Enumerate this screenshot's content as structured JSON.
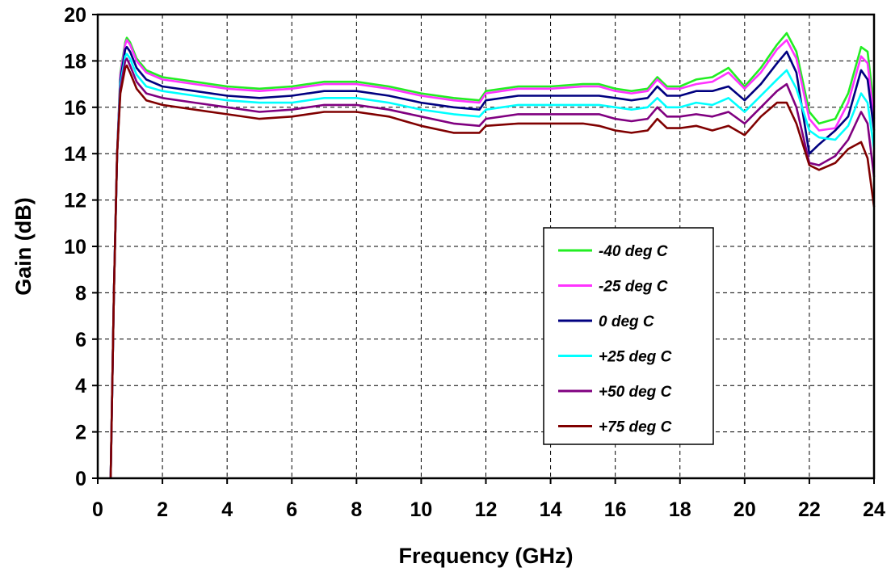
{
  "chart_data": {
    "type": "line",
    "xlabel": "Frequency (GHz)",
    "ylabel": "Gain (dB)",
    "xlim": [
      0,
      24
    ],
    "ylim": [
      0,
      20
    ],
    "xticks": [
      0,
      2,
      4,
      6,
      8,
      10,
      12,
      14,
      16,
      18,
      20,
      22,
      24
    ],
    "yticks": [
      0,
      2,
      4,
      6,
      8,
      10,
      12,
      14,
      16,
      18,
      20
    ],
    "grid": true,
    "legend_position": "center-right",
    "series": [
      {
        "name": "-40 deg C",
        "color": "#22ee22",
        "points": [
          [
            0.4,
            0
          ],
          [
            0.5,
            8
          ],
          [
            0.6,
            14
          ],
          [
            0.7,
            17.5
          ],
          [
            0.85,
            18.8
          ],
          [
            0.9,
            19
          ],
          [
            1.0,
            18.8
          ],
          [
            1.2,
            18.1
          ],
          [
            1.5,
            17.6
          ],
          [
            2,
            17.3
          ],
          [
            3,
            17.1
          ],
          [
            4,
            16.9
          ],
          [
            5,
            16.8
          ],
          [
            6,
            16.9
          ],
          [
            7,
            17.1
          ],
          [
            8,
            17.1
          ],
          [
            9,
            16.9
          ],
          [
            10,
            16.6
          ],
          [
            11,
            16.4
          ],
          [
            11.8,
            16.3
          ],
          [
            12,
            16.7
          ],
          [
            13,
            16.9
          ],
          [
            14,
            16.9
          ],
          [
            15,
            17
          ],
          [
            15.5,
            17
          ],
          [
            16,
            16.8
          ],
          [
            16.5,
            16.7
          ],
          [
            17,
            16.8
          ],
          [
            17.3,
            17.3
          ],
          [
            17.6,
            16.9
          ],
          [
            18,
            16.9
          ],
          [
            18.5,
            17.2
          ],
          [
            19,
            17.3
          ],
          [
            19.5,
            17.7
          ],
          [
            20,
            16.9
          ],
          [
            20.5,
            17.7
          ],
          [
            21,
            18.7
          ],
          [
            21.3,
            19.2
          ],
          [
            21.6,
            18.4
          ],
          [
            22,
            15.8
          ],
          [
            22.3,
            15.3
          ],
          [
            22.8,
            15.5
          ],
          [
            23.2,
            16.6
          ],
          [
            23.6,
            18.6
          ],
          [
            23.8,
            18.4
          ],
          [
            24,
            16
          ]
        ]
      },
      {
        "name": "-25 deg C",
        "color": "#ff33ff",
        "points": [
          [
            0.4,
            0
          ],
          [
            0.5,
            8
          ],
          [
            0.6,
            14
          ],
          [
            0.7,
            17.4
          ],
          [
            0.85,
            18.7
          ],
          [
            0.9,
            18.9
          ],
          [
            1.0,
            18.7
          ],
          [
            1.2,
            18
          ],
          [
            1.5,
            17.5
          ],
          [
            2,
            17.2
          ],
          [
            3,
            17
          ],
          [
            4,
            16.8
          ],
          [
            5,
            16.7
          ],
          [
            6,
            16.8
          ],
          [
            7,
            17
          ],
          [
            8,
            17
          ],
          [
            9,
            16.8
          ],
          [
            10,
            16.5
          ],
          [
            11,
            16.3
          ],
          [
            11.8,
            16.2
          ],
          [
            12,
            16.6
          ],
          [
            13,
            16.8
          ],
          [
            14,
            16.8
          ],
          [
            15,
            16.9
          ],
          [
            15.5,
            16.9
          ],
          [
            16,
            16.7
          ],
          [
            16.5,
            16.6
          ],
          [
            17,
            16.7
          ],
          [
            17.3,
            17.2
          ],
          [
            17.6,
            16.8
          ],
          [
            18,
            16.8
          ],
          [
            18.5,
            17
          ],
          [
            19,
            17.1
          ],
          [
            19.5,
            17.5
          ],
          [
            20,
            16.8
          ],
          [
            20.5,
            17.5
          ],
          [
            21,
            18.5
          ],
          [
            21.3,
            18.9
          ],
          [
            21.6,
            18.1
          ],
          [
            22,
            15.5
          ],
          [
            22.3,
            15
          ],
          [
            22.8,
            15.1
          ],
          [
            23.2,
            16.2
          ],
          [
            23.6,
            18.2
          ],
          [
            23.8,
            17.9
          ],
          [
            24,
            15.5
          ]
        ]
      },
      {
        "name": "0 deg C",
        "color": "#000080",
        "points": [
          [
            0.4,
            0
          ],
          [
            0.5,
            8
          ],
          [
            0.6,
            14
          ],
          [
            0.7,
            17.2
          ],
          [
            0.85,
            18.5
          ],
          [
            0.9,
            18.6
          ],
          [
            1.0,
            18.4
          ],
          [
            1.2,
            17.7
          ],
          [
            1.5,
            17.2
          ],
          [
            2,
            16.9
          ],
          [
            3,
            16.7
          ],
          [
            4,
            16.5
          ],
          [
            5,
            16.4
          ],
          [
            6,
            16.5
          ],
          [
            7,
            16.7
          ],
          [
            8,
            16.7
          ],
          [
            9,
            16.5
          ],
          [
            10,
            16.2
          ],
          [
            11,
            16
          ],
          [
            11.8,
            15.9
          ],
          [
            12,
            16.3
          ],
          [
            13,
            16.5
          ],
          [
            14,
            16.5
          ],
          [
            15,
            16.5
          ],
          [
            15.5,
            16.5
          ],
          [
            16,
            16.4
          ],
          [
            16.5,
            16.3
          ],
          [
            17,
            16.4
          ],
          [
            17.3,
            16.9
          ],
          [
            17.6,
            16.5
          ],
          [
            18,
            16.5
          ],
          [
            18.5,
            16.7
          ],
          [
            19,
            16.7
          ],
          [
            19.5,
            16.9
          ],
          [
            20,
            16.3
          ],
          [
            20.5,
            17
          ],
          [
            21,
            17.9
          ],
          [
            21.3,
            18.4
          ],
          [
            21.6,
            17.5
          ],
          [
            22,
            14
          ],
          [
            22.3,
            14.4
          ],
          [
            22.8,
            15
          ],
          [
            23.2,
            15.6
          ],
          [
            23.6,
            17.6
          ],
          [
            23.8,
            17.2
          ],
          [
            24,
            15
          ]
        ]
      },
      {
        "name": "+25 deg C",
        "color": "#00ffff",
        "points": [
          [
            0.4,
            0
          ],
          [
            0.5,
            8
          ],
          [
            0.6,
            14
          ],
          [
            0.7,
            17
          ],
          [
            0.85,
            18.2
          ],
          [
            0.9,
            18.3
          ],
          [
            1.0,
            18.1
          ],
          [
            1.2,
            17.4
          ],
          [
            1.5,
            16.9
          ],
          [
            2,
            16.7
          ],
          [
            3,
            16.5
          ],
          [
            4,
            16.3
          ],
          [
            5,
            16.2
          ],
          [
            6,
            16.2
          ],
          [
            7,
            16.4
          ],
          [
            8,
            16.4
          ],
          [
            9,
            16.2
          ],
          [
            10,
            15.9
          ],
          [
            11,
            15.7
          ],
          [
            11.8,
            15.6
          ],
          [
            12,
            15.9
          ],
          [
            13,
            16.1
          ],
          [
            14,
            16.1
          ],
          [
            15,
            16.1
          ],
          [
            15.5,
            16.1
          ],
          [
            16,
            16
          ],
          [
            16.5,
            15.9
          ],
          [
            17,
            16
          ],
          [
            17.3,
            16.4
          ],
          [
            17.6,
            16
          ],
          [
            18,
            16
          ],
          [
            18.5,
            16.2
          ],
          [
            19,
            16.1
          ],
          [
            19.5,
            16.4
          ],
          [
            20,
            15.8
          ],
          [
            20.5,
            16.5
          ],
          [
            21,
            17.2
          ],
          [
            21.3,
            17.6
          ],
          [
            21.6,
            16.8
          ],
          [
            22,
            15
          ],
          [
            22.3,
            14.7
          ],
          [
            22.8,
            14.6
          ],
          [
            23.2,
            15.2
          ],
          [
            23.6,
            16.6
          ],
          [
            23.8,
            16.2
          ],
          [
            24,
            14.2
          ]
        ]
      },
      {
        "name": "+50 deg C",
        "color": "#800080",
        "points": [
          [
            0.4,
            0
          ],
          [
            0.5,
            8
          ],
          [
            0.6,
            14
          ],
          [
            0.7,
            16.8
          ],
          [
            0.85,
            18
          ],
          [
            0.9,
            18.1
          ],
          [
            1.0,
            17.8
          ],
          [
            1.2,
            17.1
          ],
          [
            1.5,
            16.6
          ],
          [
            2,
            16.4
          ],
          [
            3,
            16.2
          ],
          [
            4,
            16
          ],
          [
            5,
            15.8
          ],
          [
            6,
            15.9
          ],
          [
            7,
            16.1
          ],
          [
            8,
            16.1
          ],
          [
            9,
            15.9
          ],
          [
            10,
            15.6
          ],
          [
            11,
            15.3
          ],
          [
            11.8,
            15.2
          ],
          [
            12,
            15.5
          ],
          [
            13,
            15.7
          ],
          [
            14,
            15.7
          ],
          [
            15,
            15.7
          ],
          [
            15.5,
            15.7
          ],
          [
            16,
            15.5
          ],
          [
            16.5,
            15.4
          ],
          [
            17,
            15.5
          ],
          [
            17.3,
            16
          ],
          [
            17.6,
            15.6
          ],
          [
            18,
            15.6
          ],
          [
            18.5,
            15.7
          ],
          [
            19,
            15.6
          ],
          [
            19.5,
            15.8
          ],
          [
            20,
            15.3
          ],
          [
            20.5,
            16
          ],
          [
            21,
            16.7
          ],
          [
            21.3,
            17
          ],
          [
            21.6,
            16
          ],
          [
            22,
            13.6
          ],
          [
            22.3,
            13.5
          ],
          [
            22.8,
            13.9
          ],
          [
            23.2,
            14.6
          ],
          [
            23.6,
            15.8
          ],
          [
            23.8,
            15.3
          ],
          [
            24,
            13
          ]
        ]
      },
      {
        "name": "+75 deg C",
        "color": "#800000",
        "points": [
          [
            0.4,
            0
          ],
          [
            0.5,
            8
          ],
          [
            0.6,
            14
          ],
          [
            0.7,
            16.6
          ],
          [
            0.85,
            17.7
          ],
          [
            0.9,
            17.8
          ],
          [
            1.0,
            17.5
          ],
          [
            1.2,
            16.8
          ],
          [
            1.5,
            16.3
          ],
          [
            2,
            16.1
          ],
          [
            3,
            15.9
          ],
          [
            4,
            15.7
          ],
          [
            5,
            15.5
          ],
          [
            6,
            15.6
          ],
          [
            7,
            15.8
          ],
          [
            8,
            15.8
          ],
          [
            9,
            15.6
          ],
          [
            10,
            15.2
          ],
          [
            11,
            14.9
          ],
          [
            11.8,
            14.9
          ],
          [
            12,
            15.2
          ],
          [
            13,
            15.3
          ],
          [
            14,
            15.3
          ],
          [
            15,
            15.3
          ],
          [
            15.5,
            15.2
          ],
          [
            16,
            15
          ],
          [
            16.5,
            14.9
          ],
          [
            17,
            15
          ],
          [
            17.3,
            15.5
          ],
          [
            17.6,
            15.1
          ],
          [
            18,
            15.1
          ],
          [
            18.5,
            15.2
          ],
          [
            19,
            15
          ],
          [
            19.5,
            15.2
          ],
          [
            20,
            14.8
          ],
          [
            20.5,
            15.6
          ],
          [
            21,
            16.2
          ],
          [
            21.3,
            16.2
          ],
          [
            21.6,
            15.3
          ],
          [
            22,
            13.5
          ],
          [
            22.3,
            13.3
          ],
          [
            22.8,
            13.6
          ],
          [
            23.2,
            14.2
          ],
          [
            23.6,
            14.5
          ],
          [
            23.8,
            13.8
          ],
          [
            24,
            11.7
          ]
        ]
      }
    ]
  }
}
